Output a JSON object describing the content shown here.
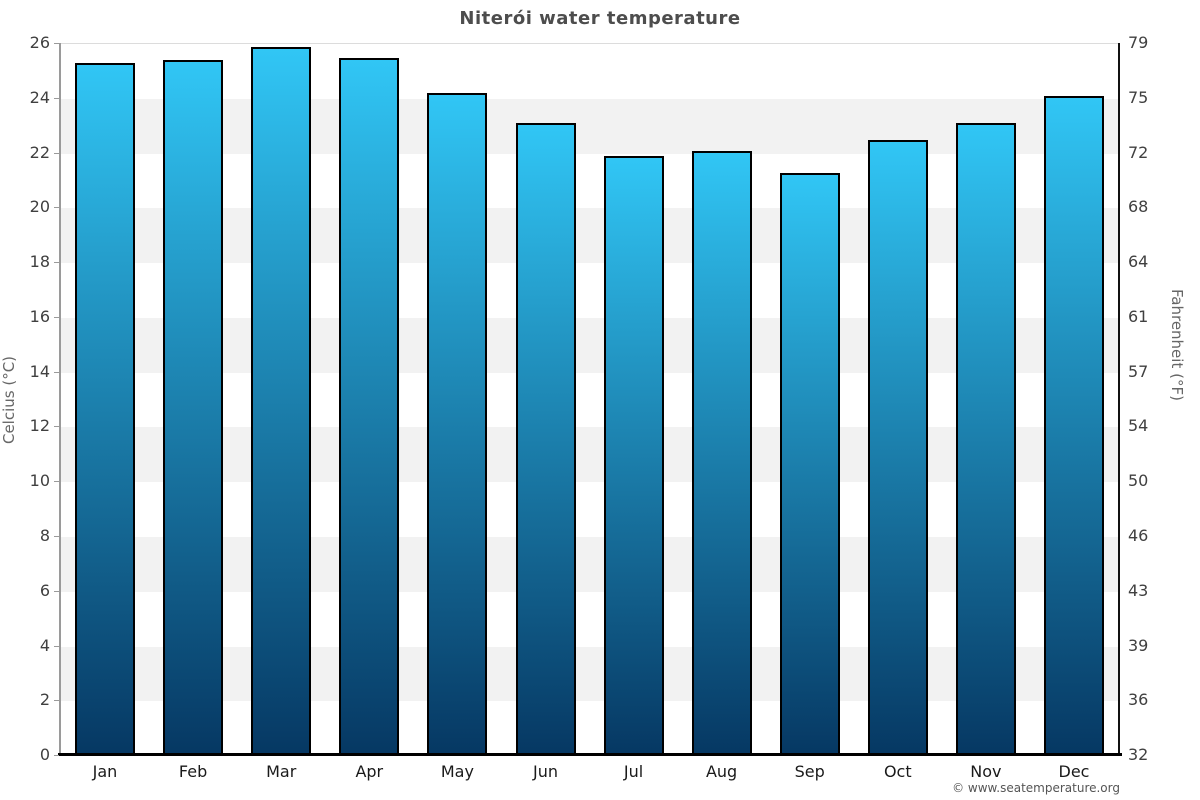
{
  "page": {
    "attribution": "© www.seatemperature.org"
  },
  "chart_data": {
    "type": "bar",
    "title": "Niterói water temperature",
    "categories": [
      "Jan",
      "Feb",
      "Mar",
      "Apr",
      "May",
      "Jun",
      "Jul",
      "Aug",
      "Sep",
      "Oct",
      "Nov",
      "Dec"
    ],
    "values": [
      25.3,
      25.4,
      25.9,
      25.5,
      24.2,
      23.1,
      21.9,
      22.1,
      21.3,
      22.5,
      23.1,
      24.1
    ],
    "unit": "°C",
    "xlabel": "",
    "ylabel_left": "Celcius (°C)",
    "ylabel_right": "Fahrenheit (°F)",
    "ylim": [
      0,
      26
    ],
    "yticks_celsius": [
      0,
      2,
      4,
      6,
      8,
      10,
      12,
      14,
      16,
      18,
      20,
      22,
      24,
      26
    ],
    "yticks_fahrenheit": [
      "32",
      "36",
      "39",
      "43",
      "46",
      "50",
      "54",
      "57",
      "61",
      "64",
      "68",
      "72",
      "75",
      "79"
    ],
    "grid_bands_celsius": [
      [
        2,
        4
      ],
      [
        6,
        8
      ],
      [
        10,
        12
      ],
      [
        14,
        16
      ],
      [
        18,
        20
      ],
      [
        22,
        24
      ]
    ],
    "legend": "none",
    "colors": {
      "bar_gradient_top": "#31c6f5",
      "bar_gradient_bottom": "#063863",
      "bar_border": "#000000",
      "band_fill": "#f2f2f2",
      "title_text": "#4d4d4d",
      "tick_text": "#404040",
      "axis_title_text": "#666666"
    }
  }
}
